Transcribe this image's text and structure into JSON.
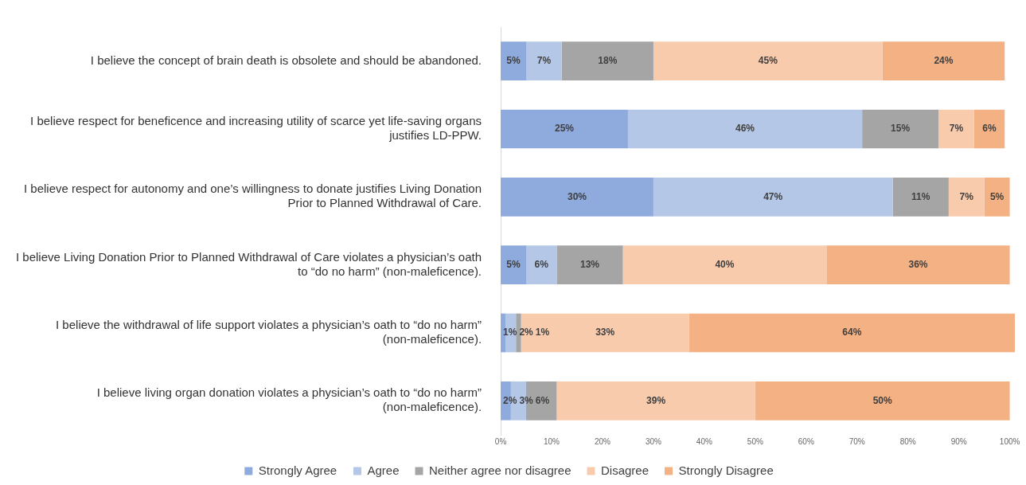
{
  "chart_data": {
    "type": "bar",
    "orientation": "horizontal",
    "stacked": true,
    "grid": false,
    "legend": "bottom",
    "categories": [
      "I believe the concept of brain death is obsolete and should be abandoned.",
      "I believe respect for beneficence and increasing utility of scarce yet life-saving organs justifies LD-PPW.",
      "I believe respect for autonomy and one’s willingness to donate justifies Living Donation Prior to Planned Withdrawal of Care.",
      "I believe Living Donation Prior to Planned Withdrawal of Care violates a physician’s oath to “do no harm” (non-maleficence).",
      "I believe the withdrawal of life support violates a physician’s oath to “do no harm” (non-maleficence).",
      "I believe living organ donation violates a physician’s oath to “do no harm” (non-maleficence)."
    ],
    "xlim": [
      0,
      101
    ],
    "xticks": [
      {
        "value": 0,
        "label": "0%"
      },
      {
        "value": 10,
        "label": "10%"
      },
      {
        "value": 20,
        "label": "20%"
      },
      {
        "value": 30,
        "label": "30%"
      },
      {
        "value": 40,
        "label": "40%"
      },
      {
        "value": 50,
        "label": "50%"
      },
      {
        "value": 60,
        "label": "60%"
      },
      {
        "value": 70,
        "label": "70%"
      },
      {
        "value": 80,
        "label": "80%"
      },
      {
        "value": 90,
        "label": "90%"
      },
      {
        "value": 100,
        "label": "100%"
      }
    ],
    "series": [
      {
        "name": "Strongly Agree",
        "color": "#8faadc",
        "values": [
          5,
          25,
          30,
          5,
          1,
          2
        ],
        "value_labels": [
          "5%",
          "25%",
          "30%",
          "5%",
          "1%",
          "2%"
        ]
      },
      {
        "name": "Agree",
        "color": "#b4c7e7",
        "values": [
          7,
          46,
          47,
          6,
          2,
          3
        ],
        "value_labels": [
          "7%",
          "46%",
          "47%",
          "6%",
          "2%",
          "3%"
        ]
      },
      {
        "name": "Neither agree nor disagree",
        "color": "#a5a5a5",
        "values": [
          18,
          15,
          11,
          13,
          1,
          6
        ],
        "value_labels": [
          "18%",
          "15%",
          "11%",
          "13%",
          "1%",
          "6%"
        ]
      },
      {
        "name": "Disagree",
        "color": "#f8cbad",
        "values": [
          45,
          7,
          7,
          40,
          33,
          39
        ],
        "value_labels": [
          "45%",
          "7%",
          "7%",
          "40%",
          "33%",
          "39%"
        ]
      },
      {
        "name": "Strongly Disagree",
        "color": "#f4b183",
        "values": [
          24,
          6,
          5,
          36,
          64,
          50
        ],
        "value_labels": [
          "24%",
          "6%",
          "5%",
          "36%",
          "64%",
          "50%"
        ]
      }
    ]
  }
}
